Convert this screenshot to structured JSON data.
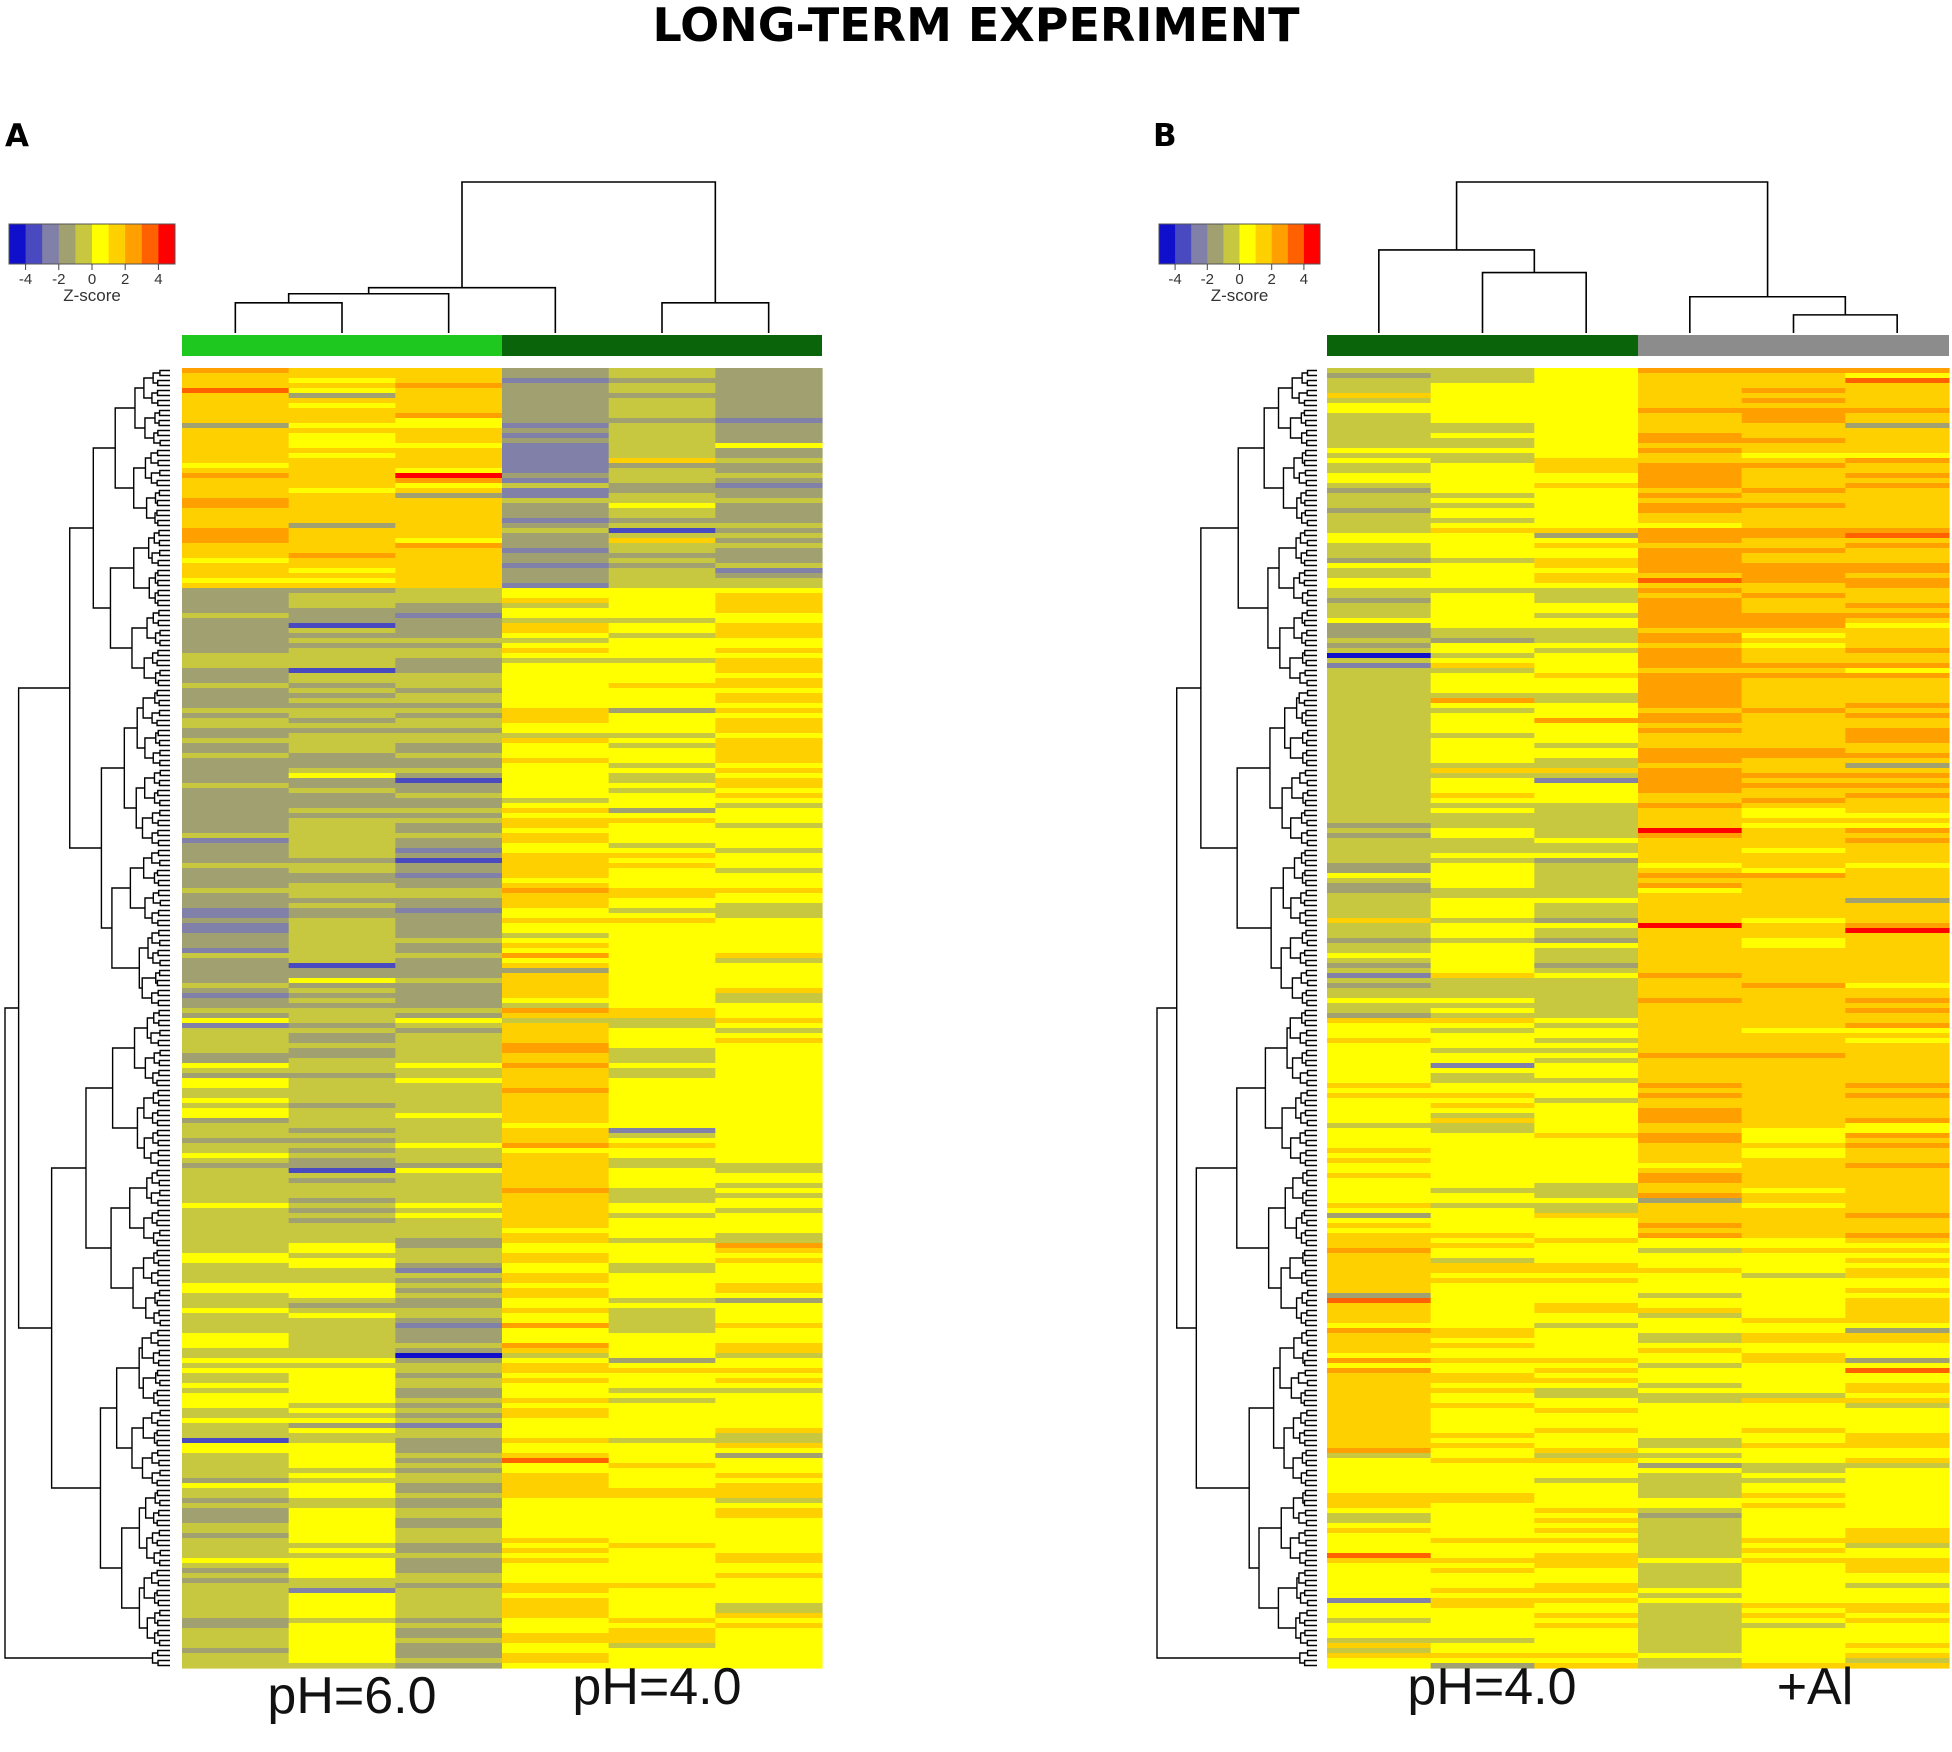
{
  "title": "LONG-TERM EXPERIMENT",
  "colors": {
    "scale": [
      "#1010cc",
      "#4a4ac0",
      "#8080a8",
      "#a0a070",
      "#c8c840",
      "#ffff00",
      "#ffd000",
      "#ffa000",
      "#ff6000",
      "#ff0000"
    ],
    "dendrogram": "#000000"
  },
  "chart_data": [
    {
      "type": "heatmap",
      "panel_label": "A",
      "color_key": {
        "title": "Z-score",
        "ticks": [
          "-4",
          "-2",
          "0",
          "2",
          "4"
        ],
        "range": [
          -5,
          5
        ]
      },
      "groups": [
        {
          "name": "pH=6.0",
          "color": "#1ec81e",
          "columns": 3
        },
        {
          "name": "pH=4.0",
          "color": "#0a640a",
          "columns": 3
        }
      ],
      "column_dendrogram": [
        [
          0,
          1,
          0.2
        ],
        [
          2,
          -1,
          0.26
        ],
        [
          4,
          5,
          0.2
        ],
        [
          3,
          -2,
          0.3
        ],
        [
          -3,
          -4,
          1.0
        ]
      ],
      "row_count": 260,
      "row_profiles": [
        [
          1.6,
          1.2,
          1.4,
          -1.8,
          -0.6,
          -1.2
        ],
        [
          -1.3,
          -0.9,
          -1.1,
          0.6,
          0.4,
          1.2
        ],
        [
          -1.6,
          -0.7,
          -1.4,
          1.1,
          0.6,
          0.3
        ],
        [
          -0.4,
          -0.8,
          -0.3,
          1.5,
          0.2,
          0.5
        ],
        [
          -0.2,
          0.0,
          -1.2,
          0.8,
          0.4,
          0.7
        ],
        [
          -0.8,
          0.2,
          -1.0,
          0.9,
          0.7,
          0.6
        ]
      ]
    },
    {
      "type": "heatmap",
      "panel_label": "B",
      "color_key": {
        "title": "Z-score",
        "ticks": [
          "-4",
          "-2",
          "0",
          "2",
          "4"
        ],
        "range": [
          -5,
          5
        ]
      },
      "groups": [
        {
          "name": "pH=4.0",
          "color": "#0a640a",
          "columns": 3
        },
        {
          "name": "+Al",
          "color": "#8c8c8c",
          "columns": 3
        }
      ],
      "column_dendrogram": [
        [
          1,
          2,
          0.4
        ],
        [
          0,
          -1,
          0.55
        ],
        [
          4,
          5,
          0.12
        ],
        [
          3,
          -3,
          0.24
        ],
        [
          -2,
          -4,
          1.0
        ]
      ],
      "row_count": 260,
      "row_profiles": [
        [
          -0.3,
          0.3,
          0.7,
          2.0,
          1.9,
          1.8
        ],
        [
          -0.8,
          0.3,
          0.2,
          2.1,
          1.6,
          1.7
        ],
        [
          -0.6,
          0.1,
          -0.5,
          1.8,
          1.4,
          1.5
        ],
        [
          0.7,
          0.6,
          0.4,
          1.6,
          1.3,
          1.5
        ],
        [
          1.5,
          0.8,
          0.7,
          0.2,
          0.7,
          0.9
        ],
        [
          0.4,
          0.6,
          0.7,
          -0.4,
          0.5,
          0.6
        ]
      ]
    }
  ]
}
